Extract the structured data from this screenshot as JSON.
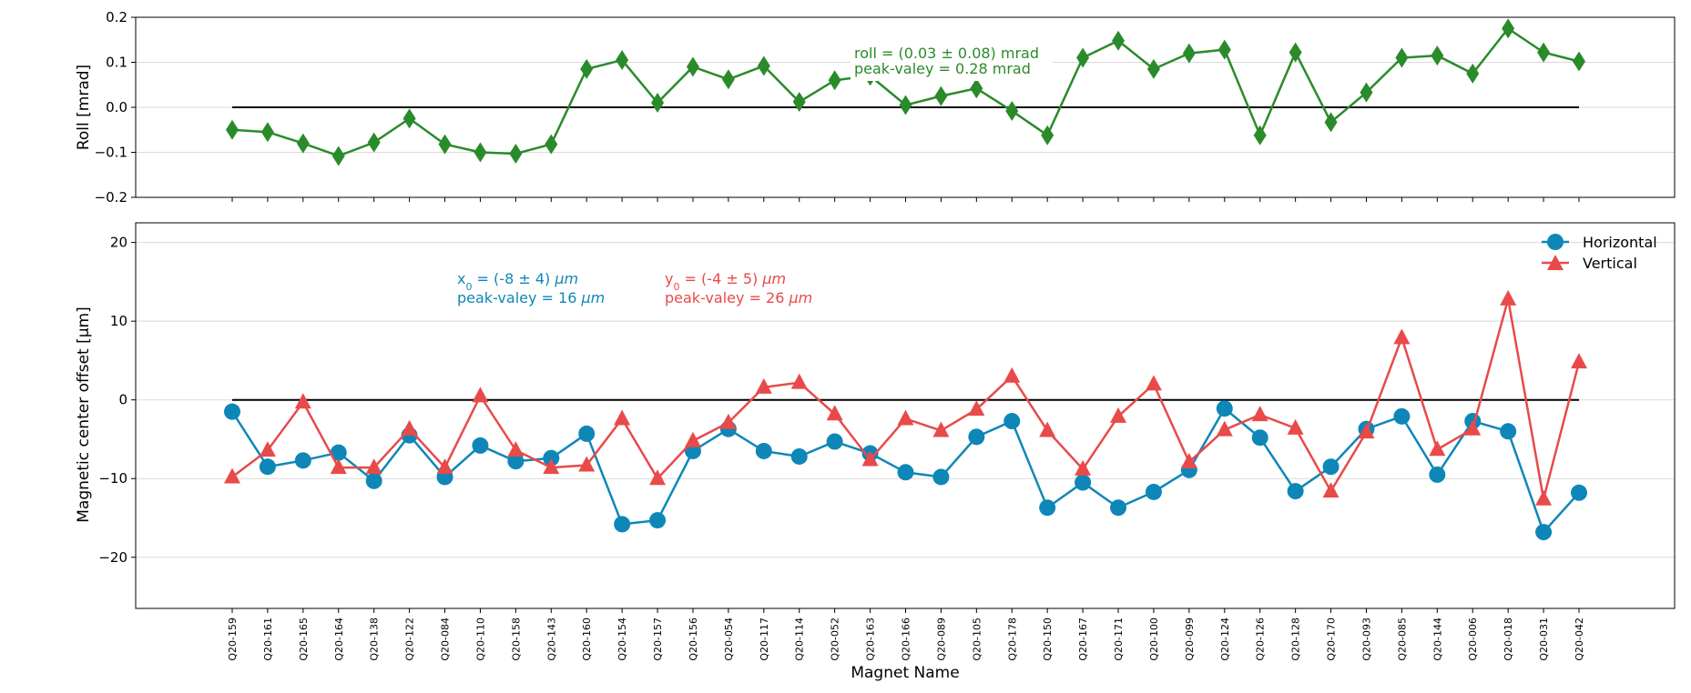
{
  "colors": {
    "roll": "#2a8b2a",
    "horizontal": "#0e87b8",
    "vertical": "#e84a4a",
    "zero_line": "#000000",
    "grid": "#d9d9d9"
  },
  "chart_data": [
    {
      "type": "line",
      "title": "",
      "xlabel": "",
      "ylabel": "Roll [mrad]",
      "ylim": [
        -0.2,
        0.2
      ],
      "yticks": [
        "0.2",
        "0.1",
        "0.0",
        "−0.1",
        "−0.2"
      ],
      "grid": "horizontal",
      "marker": "diamond",
      "series": [
        {
          "name": "",
          "values": [
            -0.05,
            -0.055,
            -0.08,
            -0.108,
            -0.078,
            -0.025,
            -0.082,
            -0.1,
            -0.103,
            -0.082,
            0.085,
            0.105,
            0.01,
            0.09,
            0.062,
            0.092,
            0.012,
            0.06,
            0.07,
            0.005,
            0.025,
            0.042,
            -0.008,
            -0.062,
            0.11,
            0.148,
            0.085,
            0.12,
            0.128,
            -0.062,
            0.122,
            -0.033,
            0.033,
            0.11,
            0.115,
            0.075,
            0.175,
            0.122,
            0.102
          ]
        }
      ],
      "annotations": [
        "roll = (0.03 ± 0.08) mrad",
        "peak-valey = 0.28 mrad"
      ]
    },
    {
      "type": "line",
      "title": "",
      "xlabel": "Magnet Name",
      "ylabel": "Magnetic center offset [μm]",
      "ylim": [
        -25,
        25
      ],
      "yticks": [
        "20",
        "10",
        "0",
        "−10",
        "−20"
      ],
      "grid": "horizontal",
      "legend": "top-right",
      "categories": [
        "Q20-159",
        "Q20-161",
        "Q20-165",
        "Q20-164",
        "Q20-138",
        "Q20-122",
        "Q20-084",
        "Q20-110",
        "Q20-158",
        "Q20-143",
        "Q20-160",
        "Q20-154",
        "Q20-157",
        "Q20-156",
        "Q20-054",
        "Q20-117",
        "Q20-114",
        "Q20-052",
        "Q20-163",
        "Q20-166",
        "Q20-089",
        "Q20-105",
        "Q20-178",
        "Q20-150",
        "Q20-167",
        "Q20-171",
        "Q20-100",
        "Q20-099",
        "Q20-124",
        "Q20-126",
        "Q20-128",
        "Q20-170",
        "Q20-093",
        "Q20-085",
        "Q20-144",
        "Q20-006",
        "Q20-018",
        "Q20-031",
        "Q20-042"
      ],
      "series": [
        {
          "name": "Horizontal",
          "marker": "circle",
          "values": [
            -1.5,
            -8.5,
            -7.7,
            -6.7,
            -10.3,
            -4.5,
            -9.8,
            -5.8,
            -7.8,
            -7.4,
            -4.3,
            -15.8,
            -15.3,
            -6.5,
            -3.7,
            -6.5,
            -7.2,
            -5.3,
            -6.8,
            -9.2,
            -9.8,
            -4.7,
            -2.7,
            -13.7,
            -10.5,
            -13.7,
            -11.7,
            -8.9,
            -1.1,
            -4.8,
            -11.6,
            -8.5,
            -3.7,
            -2.1,
            -9.5,
            -2.7,
            -4.0,
            -16.8,
            -11.8
          ]
        },
        {
          "name": "Vertical",
          "marker": "triangle",
          "values": [
            -9.8,
            -6.4,
            -0.3,
            -8.6,
            -8.6,
            -3.7,
            -8.6,
            0.5,
            -6.4,
            -8.6,
            -8.3,
            -2.4,
            -10.0,
            -5.2,
            -2.9,
            1.6,
            2.2,
            -1.8,
            -7.6,
            -2.4,
            -3.9,
            -1.2,
            3.0,
            -3.9,
            -8.8,
            -2.1,
            2.0,
            -7.9,
            -3.8,
            -1.9,
            -3.6,
            -11.6,
            -4.1,
            7.9,
            -6.3,
            -3.7,
            12.8,
            -12.6,
            4.8
          ]
        }
      ],
      "annotations": {
        "x0": {
          "var": "x",
          "sub": "0",
          "text": " = (-8 ±  4) ",
          "unit": "μm",
          "pv": "peak-valey = 16 ",
          "pv_unit": "μm"
        },
        "y0": {
          "var": "y",
          "sub": "0",
          "text": " = (-4 ±  5) ",
          "unit": "μm",
          "pv": "peak-valey = 26 ",
          "pv_unit": "μm"
        }
      }
    }
  ]
}
